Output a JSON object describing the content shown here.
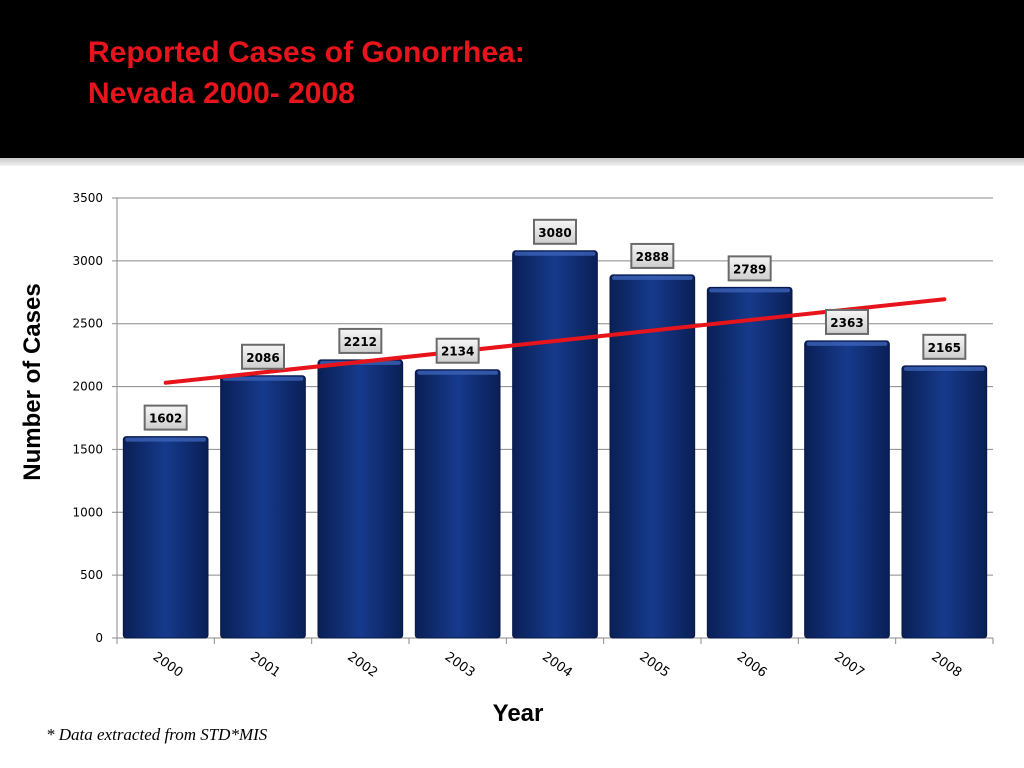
{
  "slide": {
    "title_line1": "Reported Cases of Gonorrhea:",
    "title_line2": "Nevada 2000- 2008",
    "footnote": "* Data extracted from STD*MIS"
  },
  "colors": {
    "header_bg": "#000000",
    "title": "#e8141b",
    "bar": "#0f2a6e",
    "trend": "#e8141b"
  },
  "chart_data": {
    "type": "bar",
    "categories": [
      "2000",
      "2001",
      "2002",
      "2003",
      "2004",
      "2005",
      "2006",
      "2007",
      "2008"
    ],
    "values": [
      1602,
      2086,
      2212,
      2134,
      3080,
      2888,
      2789,
      2363,
      2165
    ],
    "xlabel": "Year",
    "ylabel": "Number of Cases",
    "ylim": [
      0,
      3500
    ],
    "yticks": [
      0,
      500,
      1000,
      1500,
      2000,
      2500,
      3000,
      3500
    ],
    "grid": true,
    "data_labels": true,
    "trendline": {
      "type": "linear",
      "start": 2030,
      "end": 2695
    },
    "legend": "none"
  }
}
